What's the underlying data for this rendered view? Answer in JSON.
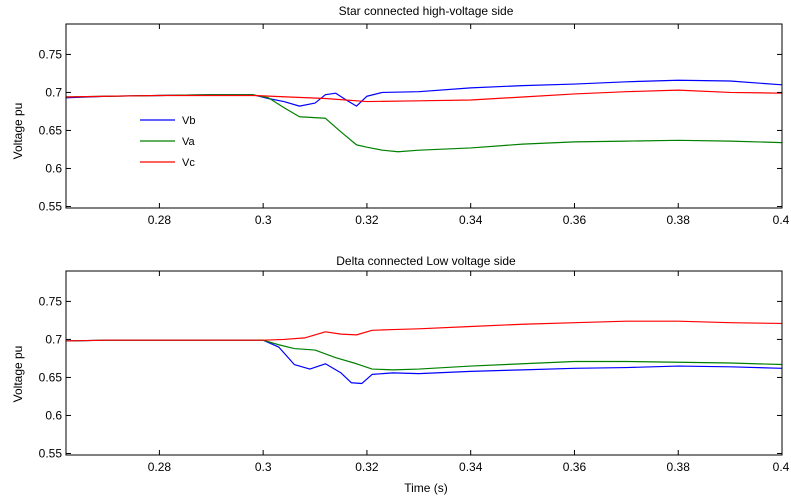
{
  "chart_data": [
    {
      "type": "line",
      "title": "Star connected high-voltage side",
      "xlabel": "",
      "ylabel": "Voltage pu",
      "xlim": [
        0.262,
        0.4
      ],
      "ylim": [
        0.548,
        0.79
      ],
      "xticks": [
        0.28,
        0.3,
        0.32,
        0.34,
        0.36,
        0.38,
        0.4
      ],
      "xtick_labels": [
        "0.28",
        "0.3",
        "0.32",
        "0.34",
        "0.36",
        "0.38",
        "0.4"
      ],
      "yticks": [
        0.55,
        0.6,
        0.65,
        0.7,
        0.75
      ],
      "ytick_labels": [
        "0.55",
        "0.6",
        "0.65",
        "0.7",
        "0.75"
      ],
      "grid": false,
      "legend_position": "left",
      "series": [
        {
          "name": "Vb",
          "color": "#0000ff",
          "x": [
            0.262,
            0.27,
            0.28,
            0.29,
            0.298,
            0.301,
            0.304,
            0.307,
            0.31,
            0.312,
            0.314,
            0.316,
            0.318,
            0.32,
            0.323,
            0.33,
            0.34,
            0.35,
            0.36,
            0.37,
            0.38,
            0.39,
            0.4
          ],
          "y": [
            0.693,
            0.695,
            0.696,
            0.697,
            0.697,
            0.692,
            0.688,
            0.682,
            0.686,
            0.697,
            0.699,
            0.69,
            0.682,
            0.695,
            0.7,
            0.701,
            0.706,
            0.709,
            0.711,
            0.714,
            0.716,
            0.715,
            0.71
          ]
        },
        {
          "name": "Va",
          "color": "#008000",
          "x": [
            0.262,
            0.27,
            0.28,
            0.29,
            0.298,
            0.301,
            0.304,
            0.307,
            0.312,
            0.315,
            0.318,
            0.32,
            0.323,
            0.326,
            0.33,
            0.34,
            0.35,
            0.36,
            0.37,
            0.38,
            0.39,
            0.4
          ],
          "y": [
            0.694,
            0.695,
            0.696,
            0.697,
            0.697,
            0.693,
            0.68,
            0.668,
            0.666,
            0.648,
            0.631,
            0.628,
            0.624,
            0.622,
            0.624,
            0.627,
            0.632,
            0.635,
            0.636,
            0.637,
            0.636,
            0.634
          ]
        },
        {
          "name": "Vc",
          "color": "#ff0000",
          "x": [
            0.262,
            0.27,
            0.28,
            0.29,
            0.298,
            0.305,
            0.312,
            0.32,
            0.33,
            0.34,
            0.35,
            0.36,
            0.37,
            0.38,
            0.39,
            0.4
          ],
          "y": [
            0.694,
            0.695,
            0.696,
            0.696,
            0.696,
            0.694,
            0.692,
            0.688,
            0.689,
            0.69,
            0.694,
            0.698,
            0.701,
            0.703,
            0.7,
            0.699
          ]
        }
      ]
    },
    {
      "type": "line",
      "title": "Delta connected Low voltage side",
      "xlabel": "Time (s)",
      "ylabel": "Voltage pu",
      "xlim": [
        0.262,
        0.4
      ],
      "ylim": [
        0.548,
        0.79
      ],
      "xticks": [
        0.28,
        0.3,
        0.32,
        0.34,
        0.36,
        0.38,
        0.4
      ],
      "xtick_labels": [
        "0.28",
        "0.3",
        "0.32",
        "0.34",
        "0.36",
        "0.38",
        "0.4"
      ],
      "yticks": [
        0.55,
        0.6,
        0.65,
        0.7,
        0.75
      ],
      "ytick_labels": [
        "0.55",
        "0.6",
        "0.65",
        "0.7",
        "0.75"
      ],
      "grid": false,
      "series": [
        {
          "name": "Vb",
          "color": "#0000ff",
          "x": [
            0.262,
            0.27,
            0.28,
            0.29,
            0.3,
            0.303,
            0.306,
            0.309,
            0.312,
            0.315,
            0.317,
            0.319,
            0.321,
            0.325,
            0.33,
            0.34,
            0.35,
            0.36,
            0.37,
            0.38,
            0.39,
            0.4
          ],
          "y": [
            0.698,
            0.699,
            0.699,
            0.699,
            0.699,
            0.69,
            0.667,
            0.661,
            0.668,
            0.656,
            0.643,
            0.642,
            0.654,
            0.656,
            0.655,
            0.658,
            0.66,
            0.662,
            0.663,
            0.665,
            0.664,
            0.662
          ]
        },
        {
          "name": "Va",
          "color": "#008000",
          "x": [
            0.262,
            0.27,
            0.28,
            0.29,
            0.3,
            0.303,
            0.306,
            0.31,
            0.314,
            0.318,
            0.321,
            0.325,
            0.33,
            0.34,
            0.35,
            0.36,
            0.37,
            0.38,
            0.39,
            0.4
          ],
          "y": [
            0.698,
            0.699,
            0.699,
            0.699,
            0.699,
            0.693,
            0.688,
            0.686,
            0.676,
            0.668,
            0.661,
            0.66,
            0.661,
            0.665,
            0.668,
            0.671,
            0.671,
            0.67,
            0.669,
            0.667
          ]
        },
        {
          "name": "Vc",
          "color": "#ff0000",
          "x": [
            0.262,
            0.27,
            0.28,
            0.29,
            0.3,
            0.304,
            0.308,
            0.312,
            0.315,
            0.318,
            0.321,
            0.325,
            0.33,
            0.34,
            0.35,
            0.36,
            0.37,
            0.38,
            0.39,
            0.4
          ],
          "y": [
            0.698,
            0.699,
            0.699,
            0.699,
            0.699,
            0.7,
            0.702,
            0.71,
            0.707,
            0.706,
            0.712,
            0.713,
            0.714,
            0.717,
            0.72,
            0.722,
            0.724,
            0.724,
            0.722,
            0.721
          ]
        }
      ]
    }
  ]
}
